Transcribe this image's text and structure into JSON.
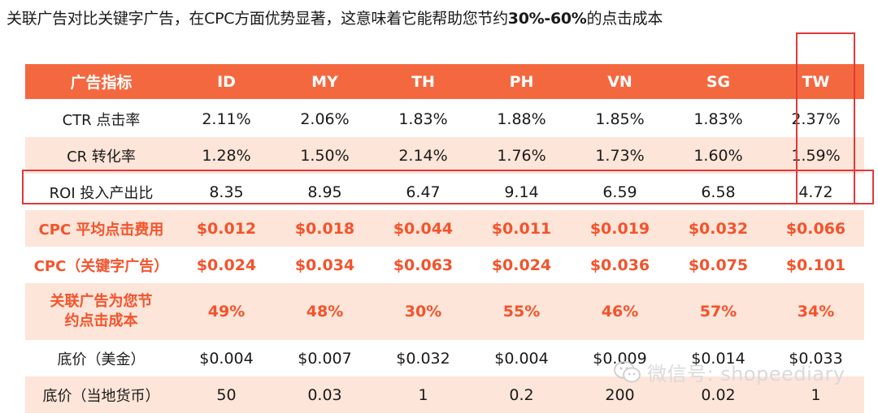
{
  "heading": {
    "prefix": "关联广告对比关键字广告，在CPC方面优势显著，这意味着它能帮助您节约",
    "highlight": "30%-60%",
    "suffix": "的点击成本"
  },
  "table": {
    "columns": [
      "广告指标",
      "ID",
      "MY",
      "TH",
      "PH",
      "VN",
      "SG",
      "TW"
    ],
    "rows": [
      {
        "label": "CTR 点击率",
        "values": [
          "2.11%",
          "2.06%",
          "1.83%",
          "1.88%",
          "1.85%",
          "1.83%",
          "2.37%"
        ]
      },
      {
        "label": "CR 转化率",
        "values": [
          "1.28%",
          "1.50%",
          "2.14%",
          "1.76%",
          "1.73%",
          "1.60%",
          "1.59%"
        ]
      },
      {
        "label": "ROI 投入产出比",
        "values": [
          "8.35",
          "8.95",
          "6.47",
          "9.14",
          "6.59",
          "6.58",
          "4.72"
        ]
      },
      {
        "label": "CPC 平均点击费用",
        "values": [
          "$0.012",
          "$0.018",
          "$0.044",
          "$0.011",
          "$0.019",
          "$0.032",
          "$0.066"
        ]
      },
      {
        "label": "CPC（关键字广告）",
        "values": [
          "$0.024",
          "$0.034",
          "$0.063",
          "$0.024",
          "$0.036",
          "$0.075",
          "$0.101"
        ]
      },
      {
        "label": "关联广告为您节约点击成本",
        "values": [
          "49%",
          "48%",
          "30%",
          "55%",
          "46%",
          "57%",
          "34%"
        ]
      },
      {
        "label": "底价（美金）",
        "values": [
          "$0.004",
          "$0.007",
          "$0.032",
          "$0.004",
          "$0.009",
          "$0.014",
          "$0.033"
        ]
      },
      {
        "label": "底价（当地货币）",
        "values": [
          "50",
          "0.03",
          "1",
          "0.2",
          "200",
          "0.02",
          "1"
        ]
      }
    ]
  },
  "watermark": {
    "text": "微信号: shopeediary",
    "icon": "wechat-icon"
  },
  "colors": {
    "header_bg": "#f4683f",
    "emphasis_text": "#f4532b",
    "alt_row_bg": "#fde5d9",
    "highlight_box": "#e03a3a"
  }
}
